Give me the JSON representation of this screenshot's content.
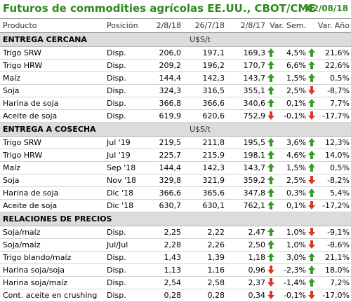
{
  "title": "Futuros de commodities agrícolas EE.UU., CBOT/CME",
  "date": "02/08/18",
  "columns": {
    "product": "Producto",
    "position": "Posición",
    "d1": "2/8/18",
    "d2": "26/7/18",
    "d3": "2/8/17",
    "sem": "Var. Sem.",
    "ano": "Var. Año"
  },
  "colors": {
    "title": "#2f8a1e",
    "up": "#3a9a2a",
    "down": "#d43a2a",
    "section_bg": "#dcdcdc"
  },
  "sections": [
    {
      "name": "ENTREGA CERCANA",
      "unit": "U$S/t",
      "rows": [
        {
          "product": "Trigo SRW",
          "position": "Disp.",
          "v1": "206,0",
          "v2": "197,1",
          "v3": "169,3",
          "a1": "up",
          "sem": "4,5%",
          "a2": "up",
          "ano": "21,6%"
        },
        {
          "product": "Trigo HRW",
          "position": "Disp.",
          "v1": "209,2",
          "v2": "196,2",
          "v3": "170,7",
          "a1": "up",
          "sem": "6,6%",
          "a2": "up",
          "ano": "22,6%"
        },
        {
          "product": "Maíz",
          "position": "Disp.",
          "v1": "144,4",
          "v2": "142,3",
          "v3": "143,7",
          "a1": "up",
          "sem": "1,5%",
          "a2": "up",
          "ano": "0,5%"
        },
        {
          "product": "Soja",
          "position": "Disp.",
          "v1": "324,3",
          "v2": "316,5",
          "v3": "355,1",
          "a1": "up",
          "sem": "2,5%",
          "a2": "down",
          "ano": "-8,7%"
        },
        {
          "product": "Harina de soja",
          "position": "Disp.",
          "v1": "366,8",
          "v2": "366,6",
          "v3": "340,6",
          "a1": "up",
          "sem": "0,1%",
          "a2": "up",
          "ano": "7,7%"
        },
        {
          "product": "Aceite de soja",
          "position": "Disp.",
          "v1": "619,9",
          "v2": "620,6",
          "v3": "752,9",
          "a1": "down",
          "sem": "-0,1%",
          "a2": "down",
          "ano": "-17,7%"
        }
      ]
    },
    {
      "name": "ENTREGA A COSECHA",
      "unit": "U$S/t",
      "rows": [
        {
          "product": "Trigo SRW",
          "position": "Jul '19",
          "v1": "219,5",
          "v2": "211,8",
          "v3": "195,5",
          "a1": "up",
          "sem": "3,6%",
          "a2": "up",
          "ano": "12,3%"
        },
        {
          "product": "Trigo HRW",
          "position": "Jul '19",
          "v1": "225,7",
          "v2": "215,9",
          "v3": "198,1",
          "a1": "up",
          "sem": "4,6%",
          "a2": "up",
          "ano": "14,0%"
        },
        {
          "product": "Maíz",
          "position": "Sep '18",
          "v1": "144,4",
          "v2": "142,3",
          "v3": "143,7",
          "a1": "up",
          "sem": "1,5%",
          "a2": "up",
          "ano": "0,5%"
        },
        {
          "product": "Soja",
          "position": "Nov '18",
          "v1": "329,8",
          "v2": "321,9",
          "v3": "359,2",
          "a1": "up",
          "sem": "2,5%",
          "a2": "down",
          "ano": "-8,2%"
        },
        {
          "product": "Harina de soja",
          "position": "Dic '18",
          "v1": "366,6",
          "v2": "365,6",
          "v3": "347,8",
          "a1": "up",
          "sem": "0,3%",
          "a2": "up",
          "ano": "5,4%"
        },
        {
          "product": "Aceite de soja",
          "position": "Dic '18",
          "v1": "630,7",
          "v2": "630,1",
          "v3": "762,1",
          "a1": "up",
          "sem": "0,1%",
          "a2": "down",
          "ano": "-17,2%"
        }
      ]
    },
    {
      "name": "RELACIONES DE PRECIOS",
      "unit": "",
      "rows": [
        {
          "product": "Soja/maíz",
          "position": "Disp.",
          "v1": "2,25",
          "v2": "2,22",
          "v3": "2,47",
          "a1": "up",
          "sem": "1,0%",
          "a2": "down",
          "ano": "-9,1%"
        },
        {
          "product": "Soja/maíz",
          "position": "Jul/Jul",
          "v1": "2,28",
          "v2": "2,26",
          "v3": "2,50",
          "a1": "up",
          "sem": "1,0%",
          "a2": "down",
          "ano": "-8,6%"
        },
        {
          "product": "Trigo blando/maíz",
          "position": "Disp.",
          "v1": "1,43",
          "v2": "1,39",
          "v3": "1,18",
          "a1": "up",
          "sem": "3,0%",
          "a2": "up",
          "ano": "21,1%"
        },
        {
          "product": "Harina soja/soja",
          "position": "Disp.",
          "v1": "1,13",
          "v2": "1,16",
          "v3": "0,96",
          "a1": "down",
          "sem": "-2,3%",
          "a2": "up",
          "ano": "18,0%"
        },
        {
          "product": "Harina soja/maíz",
          "position": "Disp.",
          "v1": "2,54",
          "v2": "2,58",
          "v3": "2,37",
          "a1": "down",
          "sem": "-1,4%",
          "a2": "up",
          "ano": "7,2%"
        },
        {
          "product": "Cont. aceite en crushing",
          "position": "Disp.",
          "v1": "0,28",
          "v2": "0,28",
          "v3": "0,34",
          "a1": "down",
          "sem": "-0,1%",
          "a2": "down",
          "ano": "-17,0%"
        }
      ]
    }
  ]
}
